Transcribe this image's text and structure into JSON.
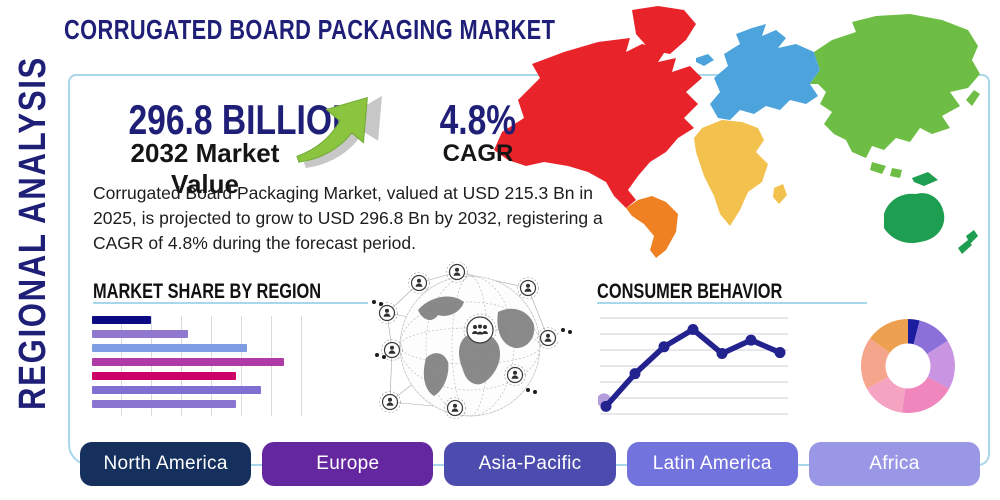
{
  "title": "CORRUGATED BOARD PACKAGING MARKET",
  "side_label": "REGIONAL ANALYSIS",
  "stats": {
    "market_value": "296.8 BILLION",
    "market_value_label": "2032 Market Value",
    "cagr_value": "4.8%",
    "cagr_label": "CAGR"
  },
  "description": "Corrugated Board Packaging Market, valued at USD 215.3 Bn in 2025, is projected to grow to USD 296.8 Bn by 2032, registering a CAGR of 4.8% during the forecast period.",
  "sections": {
    "market_share": "MARKET SHARE BY REGION",
    "consumer_behavior": "CONSUMER BEHAVIOR"
  },
  "buttons": [
    {
      "label": "North America",
      "color": "#16305e"
    },
    {
      "label": "Europe",
      "color": "#6527a0"
    },
    {
      "label": "Asia-Pacific",
      "color": "#4c4cae"
    },
    {
      "label": "Latin America",
      "color": "#7373dd"
    },
    {
      "label": "Africa",
      "color": "#9a98e6"
    }
  ],
  "map": {
    "regions": [
      {
        "name": "north-america",
        "color": "#e8232a"
      },
      {
        "name": "greenland",
        "color": "#e8232a"
      },
      {
        "name": "south-america",
        "color": "#f08122"
      },
      {
        "name": "europe",
        "color": "#4da4dc"
      },
      {
        "name": "africa",
        "color": "#f2c14e"
      },
      {
        "name": "asia",
        "color": "#6ebe45"
      },
      {
        "name": "australia",
        "color": "#1e9e50"
      }
    ]
  },
  "colors": {
    "accent_border": "#a9d6ea",
    "navy_text": "#1f1f78",
    "arrow_green": "#8bc53f",
    "arrow_shadow": "#9a9a9a",
    "globe_land": "#7d7d7d",
    "globe_mesh": "#bdbdbd"
  },
  "chart_data": [
    {
      "type": "bar",
      "title": "MARKET SHARE BY REGION",
      "orientation": "horizontal",
      "values": [
        31,
        50,
        81,
        100,
        75,
        88,
        75
      ],
      "colors": [
        "#0a0a82",
        "#9178cf",
        "#7e9ce2",
        "#b13ba6",
        "#cc0066",
        "#7f6fd2",
        "#8a75d0"
      ],
      "xlim": [
        0,
        100
      ],
      "grid": "vertical"
    },
    {
      "type": "line",
      "title": "CONSUMER BEHAVIOR",
      "values": [
        8,
        42,
        70,
        88,
        63,
        77,
        64
      ],
      "ylim": [
        0,
        100
      ],
      "line_color": "#23238f",
      "first_point_halo": "#b39ddb",
      "grid": "horizontal"
    },
    {
      "type": "pie",
      "title": "",
      "donut": true,
      "values": [
        4,
        12,
        17,
        19,
        15,
        18,
        15
      ],
      "colors": [
        "#1c1c9e",
        "#8a70d8",
        "#c995e3",
        "#ef86bd",
        "#f4a3c0",
        "#f4a58c",
        "#eda04f"
      ]
    }
  ]
}
